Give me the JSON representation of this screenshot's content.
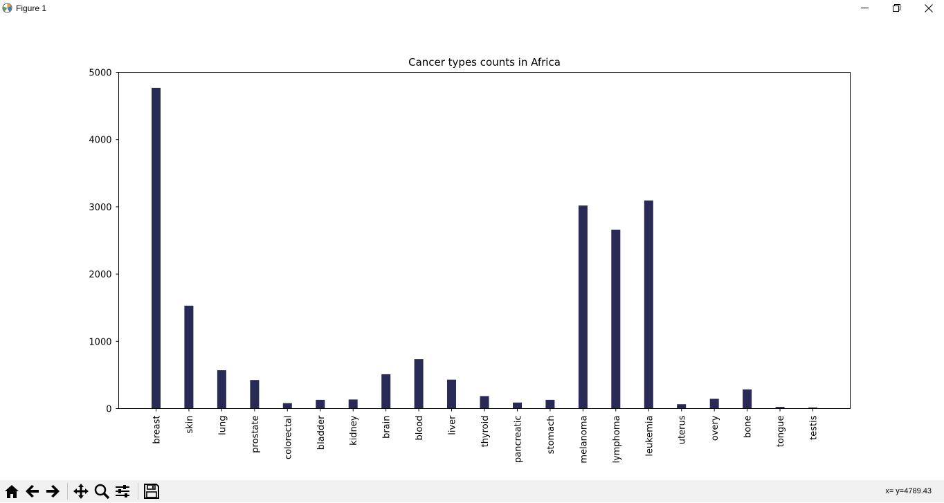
{
  "window": {
    "title": "Figure 1"
  },
  "status": {
    "coords": "x= y=4789.43"
  },
  "colors": {
    "bar": "#292a56"
  },
  "toolbar": {
    "buttons": [
      "home-icon",
      "back-icon",
      "forward-icon",
      "pan-icon",
      "zoom-icon",
      "configure-subplots-icon",
      "save-icon"
    ]
  },
  "chart_data": {
    "type": "bar",
    "title": "Cancer types counts in Africa",
    "xlabel": "",
    "ylabel": "",
    "ylim": [
      0,
      5000
    ],
    "yticks": [
      0,
      1000,
      2000,
      3000,
      4000,
      5000
    ],
    "grid": false,
    "categories": [
      "breast",
      "skin",
      "lung",
      "prostate",
      "colorectal",
      "bladder",
      "kidney",
      "brain",
      "blood",
      "liver",
      "thyroid",
      "pancreatic",
      "stomach",
      "melanoma",
      "lymphoma",
      "leukemia",
      "uterus",
      "overy",
      "bone",
      "tongue",
      "testis"
    ],
    "values": [
      4770,
      1530,
      570,
      425,
      80,
      130,
      135,
      510,
      735,
      430,
      185,
      90,
      130,
      3020,
      2660,
      3095,
      65,
      145,
      285,
      25,
      15
    ]
  }
}
